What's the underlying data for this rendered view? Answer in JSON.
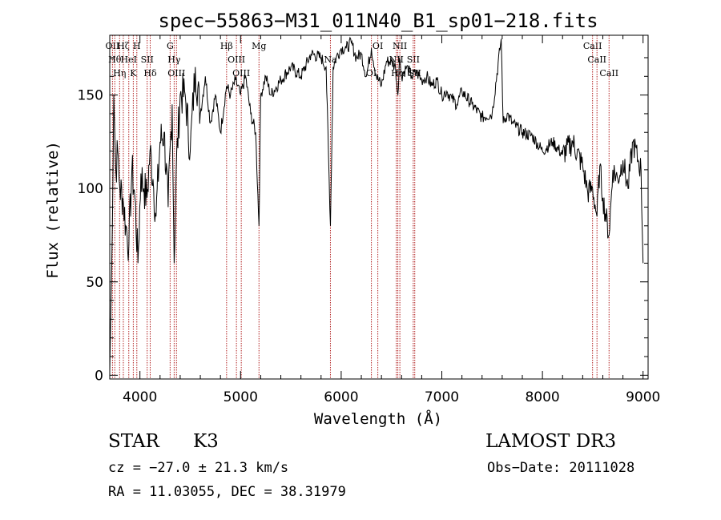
{
  "chart_data": {
    "type": "line",
    "title": "spec−55863−M31_011N40_B1_sp01−218.fits",
    "xlabel": "Wavelength (Å)",
    "ylabel": "Flux (relative)",
    "xlim": [
      3700,
      9050
    ],
    "ylim": [
      -2,
      182
    ],
    "xticks": [
      4000,
      5000,
      6000,
      7000,
      8000,
      9000
    ],
    "yticks": [
      0,
      50,
      100,
      150
    ],
    "series": [
      {
        "name": "spectrum",
        "x": [
          3700,
          3720,
          3740,
          3760,
          3780,
          3800,
          3830,
          3860,
          3890,
          3920,
          3950,
          3980,
          4010,
          4040,
          4070,
          4100,
          4130,
          4160,
          4200,
          4240,
          4280,
          4320,
          4340,
          4360,
          4400,
          4450,
          4500,
          4550,
          4600,
          4650,
          4700,
          4750,
          4800,
          4861,
          4900,
          4950,
          5000,
          5050,
          5100,
          5150,
          5183,
          5200,
          5250,
          5300,
          5400,
          5500,
          5600,
          5700,
          5800,
          5850,
          5893,
          5920,
          5950,
          6000,
          6050,
          6100,
          6150,
          6200,
          6250,
          6300,
          6350,
          6400,
          6450,
          6500,
          6540,
          6563,
          6580,
          6600,
          6650,
          6700,
          6750,
          6800,
          6850,
          6900,
          6950,
          7000,
          7050,
          7100,
          7150,
          7200,
          7300,
          7400,
          7500,
          7590,
          7610,
          7650,
          7700,
          7800,
          7900,
          8000,
          8100,
          8200,
          8300,
          8400,
          8450,
          8498,
          8542,
          8570,
          8600,
          8662,
          8700,
          8750,
          8800,
          8850,
          8900,
          8950,
          8980,
          9000
        ],
        "y": [
          2,
          60,
          150,
          110,
          120,
          100,
          95,
          80,
          70,
          110,
          95,
          60,
          108,
          100,
          95,
          120,
          105,
          85,
          125,
          130,
          90,
          145,
          60,
          110,
          150,
          150,
          120,
          165,
          140,
          160,
          135,
          150,
          130,
          155,
          150,
          158,
          150,
          160,
          140,
          130,
          80,
          150,
          160,
          150,
          158,
          165,
          160,
          172,
          170,
          165,
          80,
          165,
          170,
          175,
          175,
          178,
          170,
          172,
          160,
          175,
          160,
          155,
          168,
          168,
          165,
          150,
          170,
          160,
          165,
          160,
          162,
          158,
          160,
          155,
          158,
          150,
          152,
          148,
          145,
          152,
          145,
          138,
          140,
          180,
          135,
          140,
          135,
          130,
          128,
          120,
          125,
          118,
          125,
          112,
          98,
          100,
          85,
          112,
          95,
          75,
          110,
          105,
          115,
          100,
          125,
          115,
          110,
          60
        ]
      }
    ],
    "lines": [
      {
        "x": 3727,
        "label": "OII"
      },
      {
        "x": 3750,
        "label": "Hθ"
      },
      {
        "x": 3798,
        "label": "Hη"
      },
      {
        "x": 3835,
        "label": "Hζ"
      },
      {
        "x": 3889,
        "label": "HeI"
      },
      {
        "x": 3934,
        "label": "K"
      },
      {
        "x": 3969,
        "label": "H"
      },
      {
        "x": 4072,
        "label": "SII"
      },
      {
        "x": 4102,
        "label": "Hδ"
      },
      {
        "x": 4300,
        "label": "G"
      },
      {
        "x": 4340,
        "label": "Hγ"
      },
      {
        "x": 4363,
        "label": "OIII"
      },
      {
        "x": 4861,
        "label": "Hβ"
      },
      {
        "x": 4959,
        "label": "OIII"
      },
      {
        "x": 5007,
        "label": "OIII"
      },
      {
        "x": 5183,
        "label": "Mg"
      },
      {
        "x": 5893,
        "label": "Na"
      },
      {
        "x": 6300,
        "label": "OI"
      },
      {
        "x": 6364,
        "label": "OI"
      },
      {
        "x": 6548,
        "label": "NII"
      },
      {
        "x": 6563,
        "label": "Hα"
      },
      {
        "x": 6583,
        "label": "NII"
      },
      {
        "x": 6716,
        "label": "SII"
      },
      {
        "x": 6731,
        "label": "SII"
      },
      {
        "x": 8498,
        "label": "CaII"
      },
      {
        "x": 8542,
        "label": "CaII"
      },
      {
        "x": 8662,
        "label": "CaII"
      }
    ]
  },
  "info": {
    "object_class": "STAR",
    "subclass": "K3",
    "survey": "LAMOST DR3",
    "redshift": "cz = −27.0 ± 21.3 km/s",
    "obs_date": "Obs−Date: 20111028",
    "coords": "RA =  11.03055, DEC =  38.31979"
  }
}
